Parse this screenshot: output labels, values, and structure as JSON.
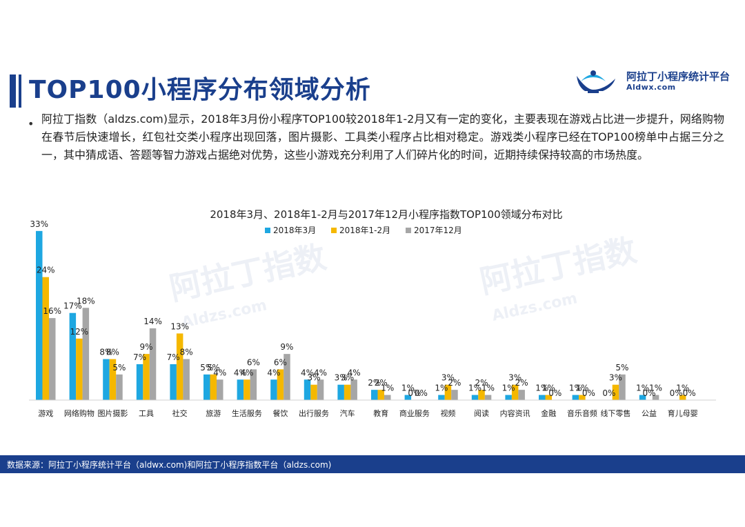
{
  "header": {
    "title": "TOP100小程序分布领域分析",
    "logo_text": "阿拉丁小程序统计平台",
    "logo_sub": "Aldwx.com",
    "logo_icon": "genie-lamp-icon"
  },
  "summary": {
    "bullet": "•",
    "text": "阿拉丁指数（aldzs.com)显示，2018年3月份小程序TOP100较2018年1-2月又有一定的变化，主要表现在游戏占比进一步提升，网络购物在春节后快速增长，红包社交类小程序出现回落，图片摄影、工具类小程序占比相对稳定。游戏类小程序已经在TOP100榜单中占据三分之一，其中猜成语、答题等智力游戏占据绝对优势，这些小游戏充分利用了人们碎片化的时间，近期持续保持较高的市场热度。"
  },
  "watermark": {
    "text": "阿拉丁指数",
    "sub": "Aldzs.com"
  },
  "footer": {
    "text": "数据来源：阿拉丁小程序统计平台（aldwx.com)和阿拉丁小程序指数平台（aldzs.com)"
  },
  "colors": {
    "primary": "#1a3f8c",
    "series": [
      "#1ea7e1",
      "#f5b800",
      "#a6a6a6"
    ]
  },
  "chart_data": {
    "type": "bar",
    "title": "2018年3月、2018年1-2月与2017年12月小程序指数TOP100领域分布对比",
    "legend_position": "top",
    "grid": false,
    "categories": [
      "游戏",
      "网络购物",
      "图片摄影",
      "工具",
      "社交",
      "旅游",
      "生活服务",
      "餐饮",
      "出行服务",
      "汽车",
      "教育",
      "商业服务",
      "视频",
      "阅读",
      "内容资讯",
      "金融",
      "音乐音频",
      "线下零售",
      "公益",
      "育儿母婴"
    ],
    "ylim": [
      0,
      35
    ],
    "series": [
      {
        "name": "2018年3月",
        "values": [
          33,
          17,
          8,
          7,
          7,
          5,
          4,
          4,
          4,
          3,
          2,
          1,
          1,
          1,
          1,
          1,
          1,
          0,
          1,
          0
        ]
      },
      {
        "name": "2018年1-2月",
        "values": [
          24,
          12,
          8,
          9,
          13,
          5,
          4,
          6,
          3,
          3,
          2,
          0,
          3,
          2,
          3,
          1,
          1,
          3,
          0,
          1
        ]
      },
      {
        "name": "2017年12月",
        "values": [
          16,
          18,
          5,
          14,
          8,
          4,
          6,
          9,
          4,
          4,
          1,
          0,
          2,
          1,
          2,
          0,
          0,
          5,
          1,
          0
        ]
      }
    ]
  }
}
